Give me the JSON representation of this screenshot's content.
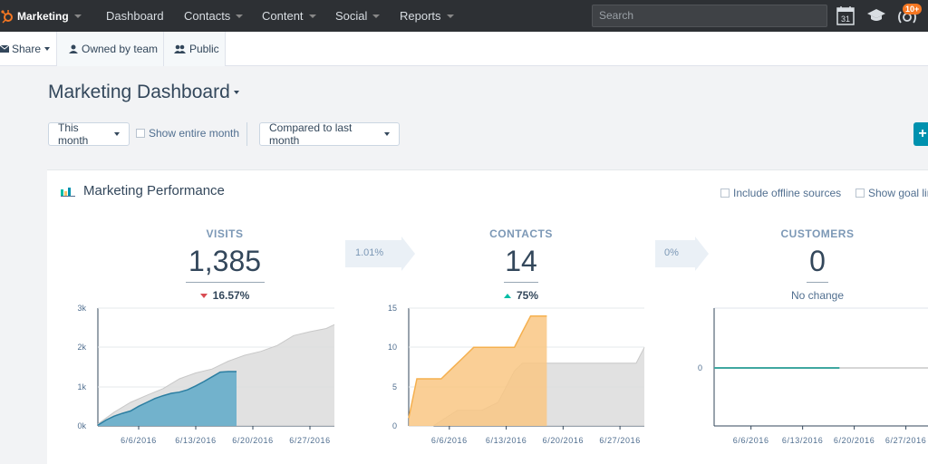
{
  "nav": {
    "brand": "Marketing",
    "items": [
      {
        "label": "Dashboard",
        "dropdown": false
      },
      {
        "label": "Contacts",
        "dropdown": true
      },
      {
        "label": "Content",
        "dropdown": true
      },
      {
        "label": "Social",
        "dropdown": true
      },
      {
        "label": "Reports",
        "dropdown": true
      }
    ],
    "search_placeholder": "Search",
    "calendar_day": "31",
    "notification_badge": "10+"
  },
  "sharebar": {
    "share_label": "Share",
    "owned_label": "Owned by team",
    "public_label": "Public"
  },
  "dashboard": {
    "title": "Marketing Dashboard"
  },
  "filters": {
    "range_label": "This month",
    "show_entire_month_label": "Show entire month",
    "compare_label": "Compared to last month",
    "add_button_label": "+"
  },
  "card": {
    "title": "Marketing Performance",
    "include_offline_label": "Include offline sources",
    "show_goal_label": "Show goal lin"
  },
  "metrics": {
    "visits": {
      "label": "VISITS",
      "value": "1,385",
      "change": "16.57%",
      "direction": "down"
    },
    "contacts": {
      "label": "CONTACTS",
      "value": "14",
      "change": "75%",
      "direction": "up"
    },
    "customers": {
      "label": "CUSTOMERS",
      "value": "0",
      "change": "No change",
      "direction": "none"
    },
    "conversion_visits_contacts": "1.01%",
    "conversion_contacts_customers": "0%"
  },
  "colors": {
    "visits_current": "#5ea9c8",
    "contacts_current": "#f9c784",
    "previous": "#dcdcdc",
    "customers_line": "#3fa7a0",
    "nav_bg": "#2d3034",
    "brand_orange": "#f57722"
  },
  "chart_data": [
    {
      "type": "area",
      "title": "",
      "x_ticks": [
        "6/6/2016",
        "6/13/2016",
        "6/20/2016",
        "6/27/2016"
      ],
      "y_ticks": [
        "0k",
        "1k",
        "2k",
        "3k"
      ],
      "ylim": [
        0,
        3000
      ],
      "xlim": [
        "6/1/2016",
        "6/30/2016"
      ],
      "grid": true,
      "series": [
        {
          "x": [
            "6/1/2016",
            "6/2/2016",
            "6/3/2016",
            "6/4/2016",
            "6/5/2016",
            "6/6/2016",
            "6/7/2016",
            "6/8/2016",
            "6/9/2016",
            "6/10/2016",
            "6/11/2016",
            "6/12/2016",
            "6/13/2016",
            "6/14/2016",
            "6/15/2016",
            "6/16/2016",
            "6/17/2016",
            "6/18/2016"
          ],
          "y": [
            20,
            150,
            250,
            320,
            380,
            500,
            600,
            700,
            770,
            830,
            860,
            920,
            1020,
            1130,
            1250,
            1370,
            1385,
            1385
          ]
        },
        {
          "x": [
            "6/1/2016",
            "6/3/2016",
            "6/5/2016",
            "6/7/2016",
            "6/9/2016",
            "6/11/2016",
            "6/13/2016",
            "6/15/2016",
            "6/17/2016",
            "6/19/2016",
            "6/21/2016",
            "6/23/2016",
            "6/25/2016",
            "6/27/2016",
            "6/29/2016",
            "6/30/2016"
          ],
          "y": [
            50,
            350,
            600,
            780,
            950,
            1200,
            1350,
            1450,
            1650,
            1800,
            1900,
            2050,
            2300,
            2400,
            2480,
            2580
          ]
        }
      ]
    },
    {
      "type": "area",
      "title": "",
      "x_ticks": [
        "6/6/2016",
        "6/13/2016",
        "6/20/2016",
        "6/27/2016"
      ],
      "y_ticks": [
        "0",
        "5",
        "10",
        "15"
      ],
      "ylim": [
        0,
        15
      ],
      "xlim": [
        "6/1/2016",
        "6/30/2016"
      ],
      "grid": true,
      "series": [
        {
          "x": [
            "6/1/2016",
            "6/2/2016",
            "6/3/2016",
            "6/4/2016",
            "6/5/2016",
            "6/6/2016",
            "6/7/2016",
            "6/8/2016",
            "6/9/2016",
            "6/10/2016",
            "6/11/2016",
            "6/12/2016",
            "6/13/2016",
            "6/14/2016",
            "6/15/2016",
            "6/16/2016",
            "6/17/2016",
            "6/18/2016"
          ],
          "y": [
            1,
            6,
            6,
            6,
            6,
            7,
            8,
            9,
            10,
            10,
            10,
            10,
            10,
            10,
            12,
            14,
            14,
            14
          ]
        },
        {
          "x": [
            "6/1/2016",
            "6/4/2016",
            "6/7/2016",
            "6/10/2016",
            "6/12/2016",
            "6/13/2016",
            "6/14/2016",
            "6/15/2016",
            "6/17/2016",
            "6/20/2016",
            "6/23/2016",
            "6/26/2016",
            "6/29/2016",
            "6/30/2016"
          ],
          "y": [
            0,
            0,
            2,
            2,
            3,
            5,
            7,
            8,
            8,
            8,
            8,
            8,
            8,
            10
          ]
        }
      ]
    },
    {
      "type": "line",
      "title": "",
      "x_ticks": [
        "6/6/2016",
        "6/13/2016",
        "6/20/2016",
        "6/27/2016"
      ],
      "y_ticks": [
        "0"
      ],
      "xlim": [
        "6/1/2016",
        "6/30/2016"
      ],
      "grid": true,
      "series": [
        {
          "x": [
            "6/1/2016",
            "6/18/2016"
          ],
          "y": [
            0,
            0
          ]
        },
        {
          "x": [
            "6/18/2016",
            "6/30/2016"
          ],
          "y": [
            0,
            0
          ]
        }
      ]
    }
  ]
}
